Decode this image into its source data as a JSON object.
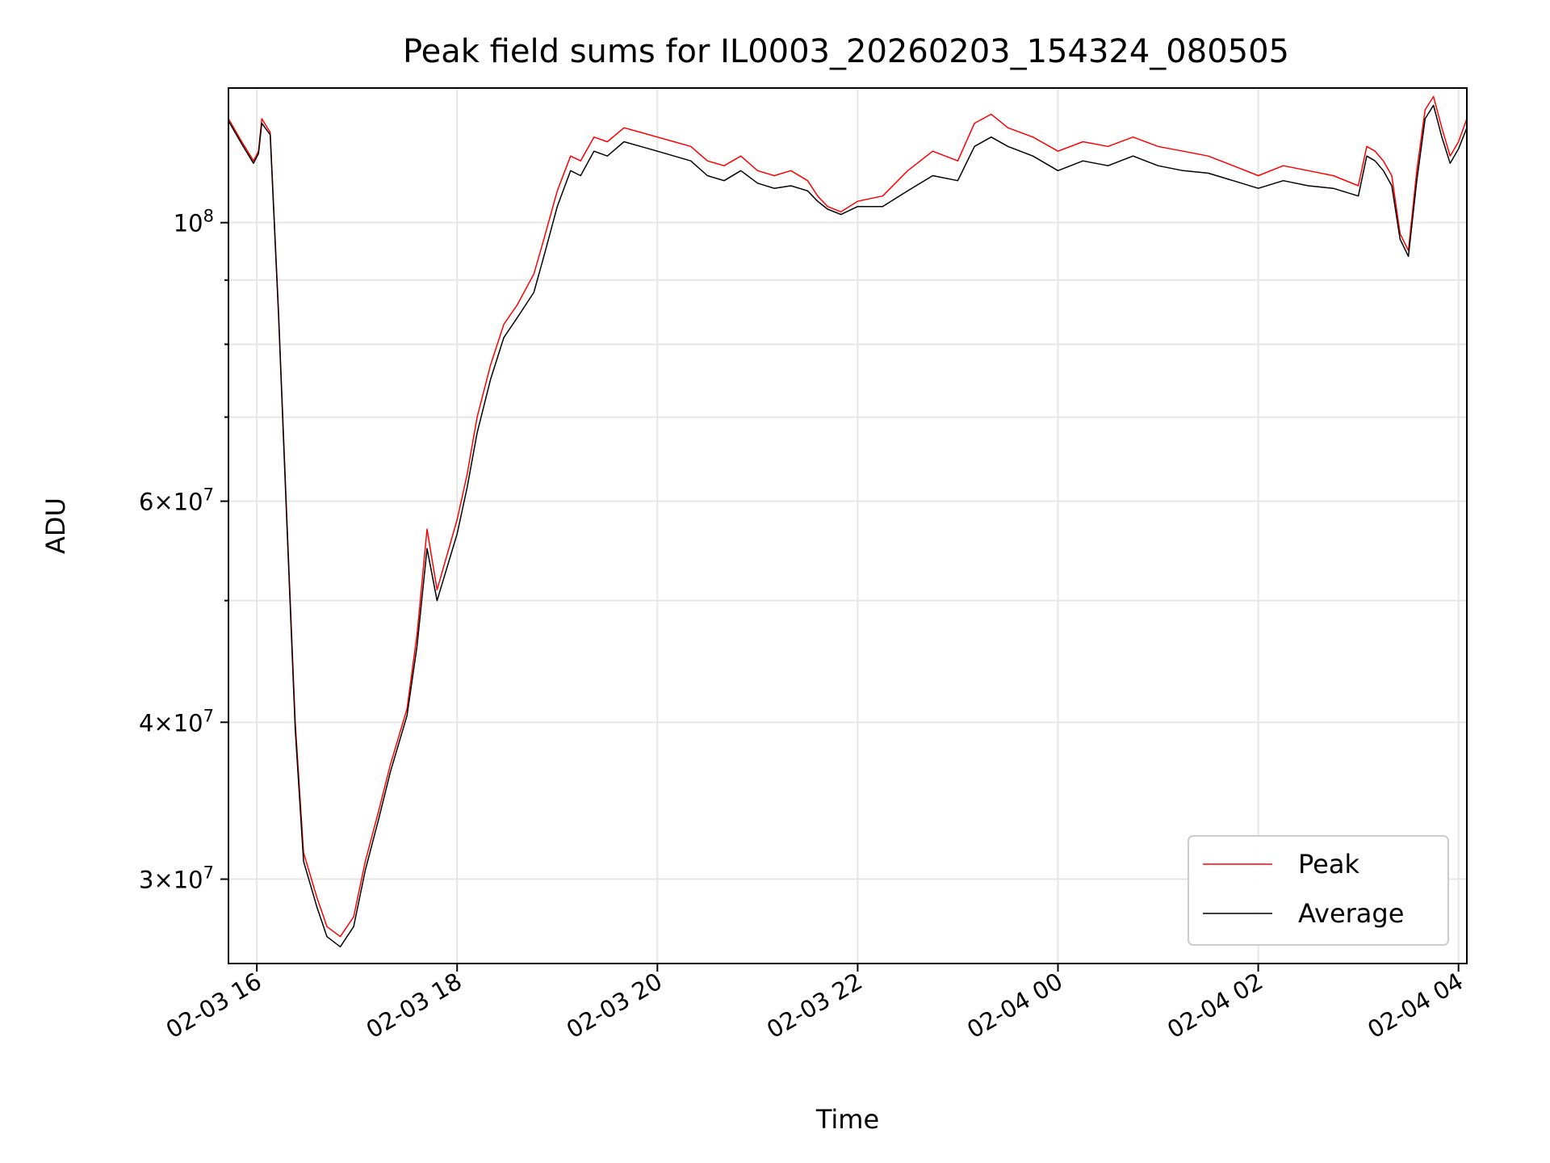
{
  "chart_data": {
    "type": "line",
    "title": "Peak field sums for IL0003_20260203_154324_080505",
    "xlabel": "Time",
    "ylabel": "ADU",
    "x_range": [
      "2026-02-03 15:43",
      "2026-02-04 04:05"
    ],
    "y_range": [
      25700000,
      128000000
    ],
    "yscale": "log",
    "grid": true,
    "legend_position": "lower-right",
    "x_ticks": [
      {
        "value": "2026-02-03 16:00",
        "label": "02-03 16"
      },
      {
        "value": "2026-02-03 18:00",
        "label": "02-03 18"
      },
      {
        "value": "2026-02-03 20:00",
        "label": "02-03 20"
      },
      {
        "value": "2026-02-03 22:00",
        "label": "02-03 22"
      },
      {
        "value": "2026-02-04 00:00",
        "label": "02-04 00"
      },
      {
        "value": "2026-02-04 02:00",
        "label": "02-04 02"
      },
      {
        "value": "2026-02-04 04:00",
        "label": "02-04 04"
      }
    ],
    "y_ticks_major": [
      {
        "value": 30000000,
        "mantissa": "3",
        "exponent": "7"
      },
      {
        "value": 40000000,
        "mantissa": "4",
        "exponent": "7"
      },
      {
        "value": 60000000,
        "mantissa": "6",
        "exponent": "7"
      },
      {
        "value": 100000000,
        "mantissa": "",
        "exponent": "8"
      }
    ],
    "y_ticks_minor": [
      50000000,
      70000000,
      80000000,
      90000000
    ],
    "series": [
      {
        "name": "Peak",
        "color": "#ff0000",
        "x": [
          "2026-02-03 15:43",
          "2026-02-03 15:51",
          "2026-02-03 15:58",
          "2026-02-03 16:01",
          "2026-02-03 16:03",
          "2026-02-03 16:08",
          "2026-02-03 16:13",
          "2026-02-03 16:18",
          "2026-02-03 16:23",
          "2026-02-03 16:28",
          "2026-02-03 16:36",
          "2026-02-03 16:42",
          "2026-02-03 16:50",
          "2026-02-03 16:58",
          "2026-02-03 17:05",
          "2026-02-03 17:13",
          "2026-02-03 17:20",
          "2026-02-03 17:30",
          "2026-02-03 17:36",
          "2026-02-03 17:42",
          "2026-02-03 17:48",
          "2026-02-03 18:00",
          "2026-02-03 18:06",
          "2026-02-03 18:12",
          "2026-02-03 18:20",
          "2026-02-03 18:28",
          "2026-02-03 18:36",
          "2026-02-03 18:46",
          "2026-02-03 18:52",
          "2026-02-03 19:00",
          "2026-02-03 19:08",
          "2026-02-03 19:14",
          "2026-02-03 19:22",
          "2026-02-03 19:30",
          "2026-02-03 19:40",
          "2026-02-03 19:50",
          "2026-02-03 20:00",
          "2026-02-03 20:10",
          "2026-02-03 20:20",
          "2026-02-03 20:30",
          "2026-02-03 20:40",
          "2026-02-03 20:50",
          "2026-02-03 21:00",
          "2026-02-03 21:10",
          "2026-02-03 21:20",
          "2026-02-03 21:30",
          "2026-02-03 21:36",
          "2026-02-03 21:42",
          "2026-02-03 21:50",
          "2026-02-03 22:00",
          "2026-02-03 22:15",
          "2026-02-03 22:30",
          "2026-02-03 22:45",
          "2026-02-03 23:00",
          "2026-02-03 23:10",
          "2026-02-03 23:20",
          "2026-02-03 23:30",
          "2026-02-03 23:45",
          "2026-02-04 00:00",
          "2026-02-04 00:15",
          "2026-02-04 00:30",
          "2026-02-04 00:45",
          "2026-02-04 01:00",
          "2026-02-04 01:15",
          "2026-02-04 01:30",
          "2026-02-04 01:45",
          "2026-02-04 02:00",
          "2026-02-04 02:15",
          "2026-02-04 02:30",
          "2026-02-04 02:45",
          "2026-02-04 03:00",
          "2026-02-04 03:05",
          "2026-02-04 03:10",
          "2026-02-04 03:15",
          "2026-02-04 03:20",
          "2026-02-04 03:25",
          "2026-02-04 03:30",
          "2026-02-04 03:35",
          "2026-02-04 03:40",
          "2026-02-04 03:45",
          "2026-02-04 03:50",
          "2026-02-04 03:55",
          "2026-02-04 04:00",
          "2026-02-04 04:05"
        ],
        "values": [
          121000000,
          116000000,
          112000000,
          114000000,
          121000000,
          118000000,
          85000000,
          58000000,
          40000000,
          31500000,
          29000000,
          27500000,
          27000000,
          28000000,
          31000000,
          34000000,
          37000000,
          41000000,
          47000000,
          57000000,
          51000000,
          58000000,
          63000000,
          70000000,
          77000000,
          83000000,
          86000000,
          91000000,
          97000000,
          106000000,
          113000000,
          112000000,
          117000000,
          116000000,
          119000000,
          118000000,
          117000000,
          116000000,
          115000000,
          112000000,
          111000000,
          113000000,
          110000000,
          109000000,
          110000000,
          108000000,
          105000000,
          103000000,
          102000000,
          104000000,
          105000000,
          110000000,
          114000000,
          112000000,
          120000000,
          122000000,
          119000000,
          117000000,
          114000000,
          116000000,
          115000000,
          117000000,
          115000000,
          114000000,
          113000000,
          111000000,
          109000000,
          111000000,
          110000000,
          109000000,
          107000000,
          115000000,
          114000000,
          112000000,
          109000000,
          98000000,
          95000000,
          110000000,
          123000000,
          126000000,
          119000000,
          113000000,
          116000000,
          121000000
        ]
      },
      {
        "name": "Average",
        "color": "#000000",
        "x": [
          "2026-02-03 15:43",
          "2026-02-03 15:51",
          "2026-02-03 15:58",
          "2026-02-03 16:01",
          "2026-02-03 16:03",
          "2026-02-03 16:08",
          "2026-02-03 16:13",
          "2026-02-03 16:18",
          "2026-02-03 16:23",
          "2026-02-03 16:28",
          "2026-02-03 16:36",
          "2026-02-03 16:42",
          "2026-02-03 16:50",
          "2026-02-03 16:58",
          "2026-02-03 17:05",
          "2026-02-03 17:13",
          "2026-02-03 17:20",
          "2026-02-03 17:30",
          "2026-02-03 17:36",
          "2026-02-03 17:42",
          "2026-02-03 17:48",
          "2026-02-03 18:00",
          "2026-02-03 18:06",
          "2026-02-03 18:12",
          "2026-02-03 18:20",
          "2026-02-03 18:28",
          "2026-02-03 18:36",
          "2026-02-03 18:46",
          "2026-02-03 18:52",
          "2026-02-03 19:00",
          "2026-02-03 19:08",
          "2026-02-03 19:14",
          "2026-02-03 19:22",
          "2026-02-03 19:30",
          "2026-02-03 19:40",
          "2026-02-03 19:50",
          "2026-02-03 20:00",
          "2026-02-03 20:10",
          "2026-02-03 20:20",
          "2026-02-03 20:30",
          "2026-02-03 20:40",
          "2026-02-03 20:50",
          "2026-02-03 21:00",
          "2026-02-03 21:10",
          "2026-02-03 21:20",
          "2026-02-03 21:30",
          "2026-02-03 21:36",
          "2026-02-03 21:42",
          "2026-02-03 21:50",
          "2026-02-03 22:00",
          "2026-02-03 22:15",
          "2026-02-03 22:30",
          "2026-02-03 22:45",
          "2026-02-03 23:00",
          "2026-02-03 23:10",
          "2026-02-03 23:20",
          "2026-02-03 23:30",
          "2026-02-03 23:45",
          "2026-02-04 00:00",
          "2026-02-04 00:15",
          "2026-02-04 00:30",
          "2026-02-04 00:45",
          "2026-02-04 01:00",
          "2026-02-04 01:15",
          "2026-02-04 01:30",
          "2026-02-04 01:45",
          "2026-02-04 02:00",
          "2026-02-04 02:15",
          "2026-02-04 02:30",
          "2026-02-04 02:45",
          "2026-02-04 03:00",
          "2026-02-04 03:05",
          "2026-02-04 03:10",
          "2026-02-04 03:15",
          "2026-02-04 03:20",
          "2026-02-04 03:25",
          "2026-02-04 03:30",
          "2026-02-04 03:35",
          "2026-02-04 03:40",
          "2026-02-04 03:45",
          "2026-02-04 03:50",
          "2026-02-04 03:55",
          "2026-02-04 04:00",
          "2026-02-04 04:05"
        ],
        "values": [
          120500000,
          115500000,
          111500000,
          113500000,
          120000000,
          117500000,
          84500000,
          57500000,
          39500000,
          31000000,
          28500000,
          27000000,
          26500000,
          27500000,
          30500000,
          33500000,
          36500000,
          40500000,
          46000000,
          55000000,
          50000000,
          56500000,
          61500000,
          68000000,
          75000000,
          81000000,
          84000000,
          88000000,
          94000000,
          103000000,
          110000000,
          109000000,
          114000000,
          113000000,
          116000000,
          115000000,
          114000000,
          113000000,
          112000000,
          109000000,
          108000000,
          110000000,
          107500000,
          106500000,
          107000000,
          106000000,
          104000000,
          102500000,
          101500000,
          103000000,
          103000000,
          106000000,
          109000000,
          108000000,
          115000000,
          117000000,
          115000000,
          113000000,
          110000000,
          112000000,
          111000000,
          113000000,
          111000000,
          110000000,
          109500000,
          108000000,
          106500000,
          108000000,
          107000000,
          106500000,
          105000000,
          113000000,
          112000000,
          110000000,
          107000000,
          97000000,
          94000000,
          108000000,
          121000000,
          124000000,
          117000000,
          111500000,
          114500000,
          119000000
        ]
      }
    ]
  }
}
